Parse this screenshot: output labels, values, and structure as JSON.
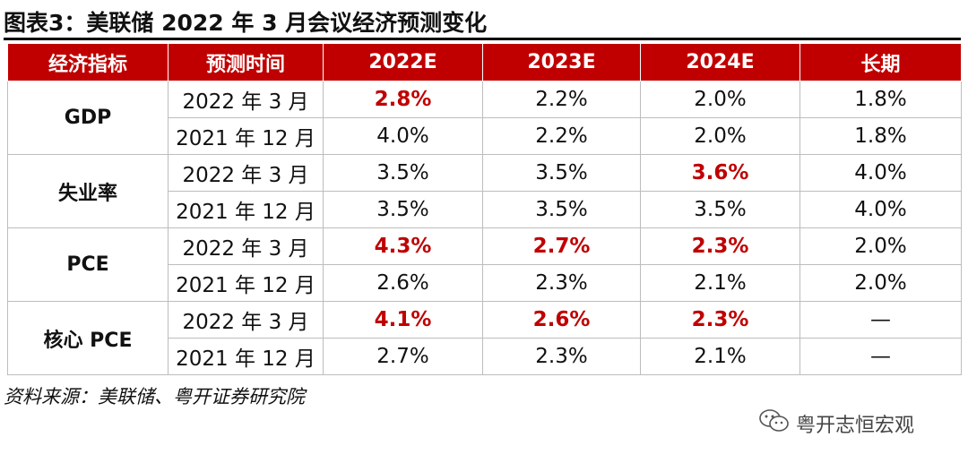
{
  "title": "图表3：美联储 2022 年 3 月会议经济预测变化",
  "columns": [
    "经济指标",
    "预测时间",
    "2022E",
    "2023E",
    "2024E",
    "长期"
  ],
  "rows": [
    {
      "indicator": "GDP",
      "cells": [
        {
          "time": "2022 年 3 月",
          "v2022": "2.8%",
          "v2023": "2.2%",
          "v2024": "2.0%",
          "longrun": "1.8%"
        },
        {
          "time": "2021 年 12 月",
          "v2022": "4.0%",
          "v2023": "2.2%",
          "v2024": "2.0%",
          "longrun": "1.8%"
        }
      ]
    },
    {
      "indicator": "失业率",
      "cells": [
        {
          "time": "2022 年 3 月",
          "v2022": "3.5%",
          "v2023": "3.5%",
          "v2024": "3.6%",
          "longrun": "4.0%"
        },
        {
          "time": "2021 年 12 月",
          "v2022": "3.5%",
          "v2023": "3.5%",
          "v2024": "3.5%",
          "longrun": "4.0%"
        }
      ]
    },
    {
      "indicator": "PCE",
      "cells": [
        {
          "time": "2022 年 3 月",
          "v2022": "4.3%",
          "v2023": "2.7%",
          "v2024": "2.3%",
          "longrun": "2.0%"
        },
        {
          "time": "2021 年 12 月",
          "v2022": "2.6%",
          "v2023": "2.3%",
          "v2024": "2.1%",
          "longrun": "2.0%"
        }
      ]
    },
    {
      "indicator": "核心 PCE",
      "cells": [
        {
          "time": "2022 年 3 月",
          "v2022": "4.1%",
          "v2023": "2.6%",
          "v2024": "2.3%",
          "longrun": "—"
        },
        {
          "time": "2021 年 12 月",
          "v2022": "2.7%",
          "v2023": "2.3%",
          "v2024": "2.1%",
          "longrun": "—"
        }
      ]
    }
  ],
  "highlight_color": "#c00000",
  "header_color": "#c00000",
  "source": "资料来源：美联储、粤开证券研究院",
  "watermark": {
    "icon": "wechat-icon",
    "text": "粤开志恒宏观"
  }
}
